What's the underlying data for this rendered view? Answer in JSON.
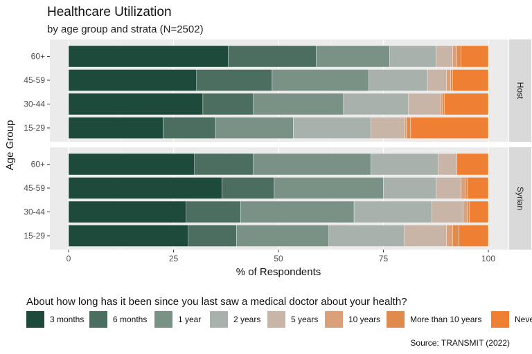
{
  "chart_data": {
    "type": "bar",
    "orientation": "horizontal",
    "stacked": true,
    "title": "Healthcare Utilization",
    "subtitle": "by age group and strata (N=2502)",
    "xlabel": "% of Respondents",
    "ylabel": "Age Group",
    "xlim": [
      0,
      100
    ],
    "xticks": [
      "0",
      "25",
      "50",
      "75",
      "100"
    ],
    "categories": [
      "60+",
      "45-59",
      "30-44",
      "15-29"
    ],
    "legend_title": "About how long has it been since you last saw a medical doctor about your health?",
    "legend_position": "bottom",
    "legend": [
      {
        "label": "3 months",
        "color": "#1d4a3b"
      },
      {
        "label": "6 months",
        "color": "#4c6e60"
      },
      {
        "label": "1 year",
        "color": "#7a9186"
      },
      {
        "label": "2 years",
        "color": "#a9b1ac"
      },
      {
        "label": "5 years",
        "color": "#c8b5a8"
      },
      {
        "label": "10 years",
        "color": "#d9a07a"
      },
      {
        "label": "More than 10 years",
        "color": "#e08a4e"
      },
      {
        "label": "Never",
        "color": "#ee7f33"
      }
    ],
    "panels": [
      {
        "strip": "Host",
        "rows": [
          {
            "label": "60+",
            "values": [
              38,
              21,
              17.5,
              11,
              4,
              1,
              1,
              6.5
            ]
          },
          {
            "label": "45-59",
            "values": [
              30.5,
              18,
              23,
              14,
              4.5,
              1,
              0.5,
              8.5
            ]
          },
          {
            "label": "30-44",
            "values": [
              32,
              12,
              21.5,
              15.5,
              7.5,
              0.5,
              0.5,
              10.5
            ]
          },
          {
            "label": "15-29",
            "values": [
              22.5,
              12.5,
              18.5,
              18.5,
              8,
              0.5,
              1,
              18.5
            ]
          }
        ]
      },
      {
        "strip": "Syrian",
        "rows": [
          {
            "label": "60+",
            "values": [
              30,
              14,
              28,
              16,
              4.5,
              0,
              0,
              7.5
            ]
          },
          {
            "label": "45-59",
            "values": [
              36.5,
              12.5,
              26,
              12.5,
              6,
              1,
              0.5,
              5
            ]
          },
          {
            "label": "30-44",
            "values": [
              28,
              13,
              27,
              18.5,
              7.5,
              1,
              0.5,
              4.5
            ]
          },
          {
            "label": "15-29",
            "values": [
              28.5,
              11.5,
              22,
              18,
              10,
              1.5,
              1.5,
              7
            ]
          }
        ]
      }
    ]
  },
  "caption": "Source: TRANSMIT (2022)"
}
